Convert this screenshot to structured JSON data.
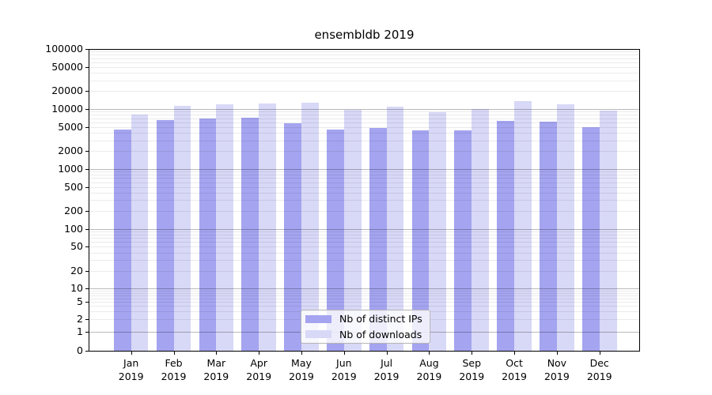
{
  "chart_data": {
    "type": "bar",
    "title": "ensembldb 2019",
    "categories": [
      "Jan 2019",
      "Feb 2019",
      "Mar 2019",
      "Apr 2019",
      "May 2019",
      "Jun 2019",
      "Jul 2019",
      "Aug 2019",
      "Sep 2019",
      "Oct 2019",
      "Nov 2019",
      "Dec 2019"
    ],
    "series": [
      {
        "name": "Nb of distinct IPs",
        "color": "#a4a4f0",
        "values": [
          4500,
          6500,
          7000,
          7050,
          5800,
          4550,
          4800,
          4350,
          4400,
          6300,
          6100,
          5000
        ]
      },
      {
        "name": "Nb of downloads",
        "color": "#d8d8f7",
        "values": [
          8100,
          11100,
          11800,
          12200,
          12500,
          9600,
          10800,
          8800,
          9900,
          13400,
          12000,
          9400
        ]
      }
    ],
    "yscale": "symlog",
    "yticks": [
      0,
      1,
      2,
      5,
      10,
      20,
      50,
      100,
      200,
      500,
      1000,
      2000,
      5000,
      10000,
      20000,
      50000,
      100000
    ],
    "ylim": [
      0,
      100000
    ],
    "xlabel": "",
    "ylabel": "",
    "grid": true,
    "legend_position": "lower center"
  }
}
